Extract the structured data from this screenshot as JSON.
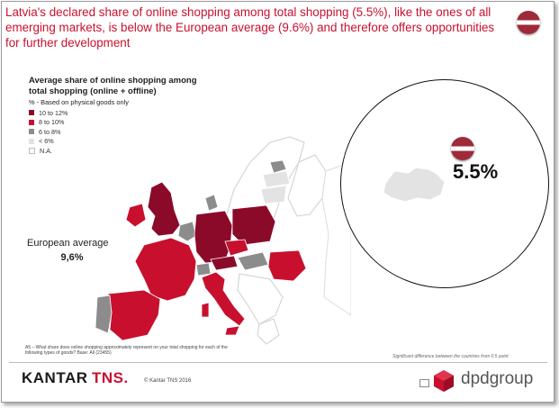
{
  "headline": "Latvia's declared share of online shopping among total shopping (5.5%), like the ones of all emerging markets, is below the European average (9.6%) and therefore offers opportunities for further development",
  "legend": {
    "title": "Average share of online shopping among total shopping (online + offline)",
    "subtitle": "% - Based on physical goods only",
    "items": [
      {
        "label": "10 to 12%",
        "color": "#8b0a2a"
      },
      {
        "label": "8 to 10%",
        "color": "#c8102e"
      },
      {
        "label": "6 to 8%",
        "color": "#8c8c8c"
      },
      {
        "label": "< 6%",
        "color": "#e3e3e3"
      },
      {
        "label": "N.A.",
        "color": "#ffffff"
      }
    ]
  },
  "european_average": {
    "label": "European average",
    "value": "9,6%"
  },
  "highlight": {
    "value": "5.5%"
  },
  "footnote": "A5 – What share does online shopping approximately represent on your total shopping for each of the following types of goods? Base: All (23455)",
  "significance_note": "Significant difference between the countries from 0.5 point",
  "footer": {
    "brand_left": "KANTAR",
    "brand_left_accent": "TNS.",
    "copyright": "© Kantar TNS 2016",
    "brand_right": "dpdgroup"
  },
  "colors": {
    "accent": "#c8102e",
    "dark_red": "#8b0a2a",
    "grey": "#8c8c8c",
    "light_grey": "#e3e3e3"
  }
}
